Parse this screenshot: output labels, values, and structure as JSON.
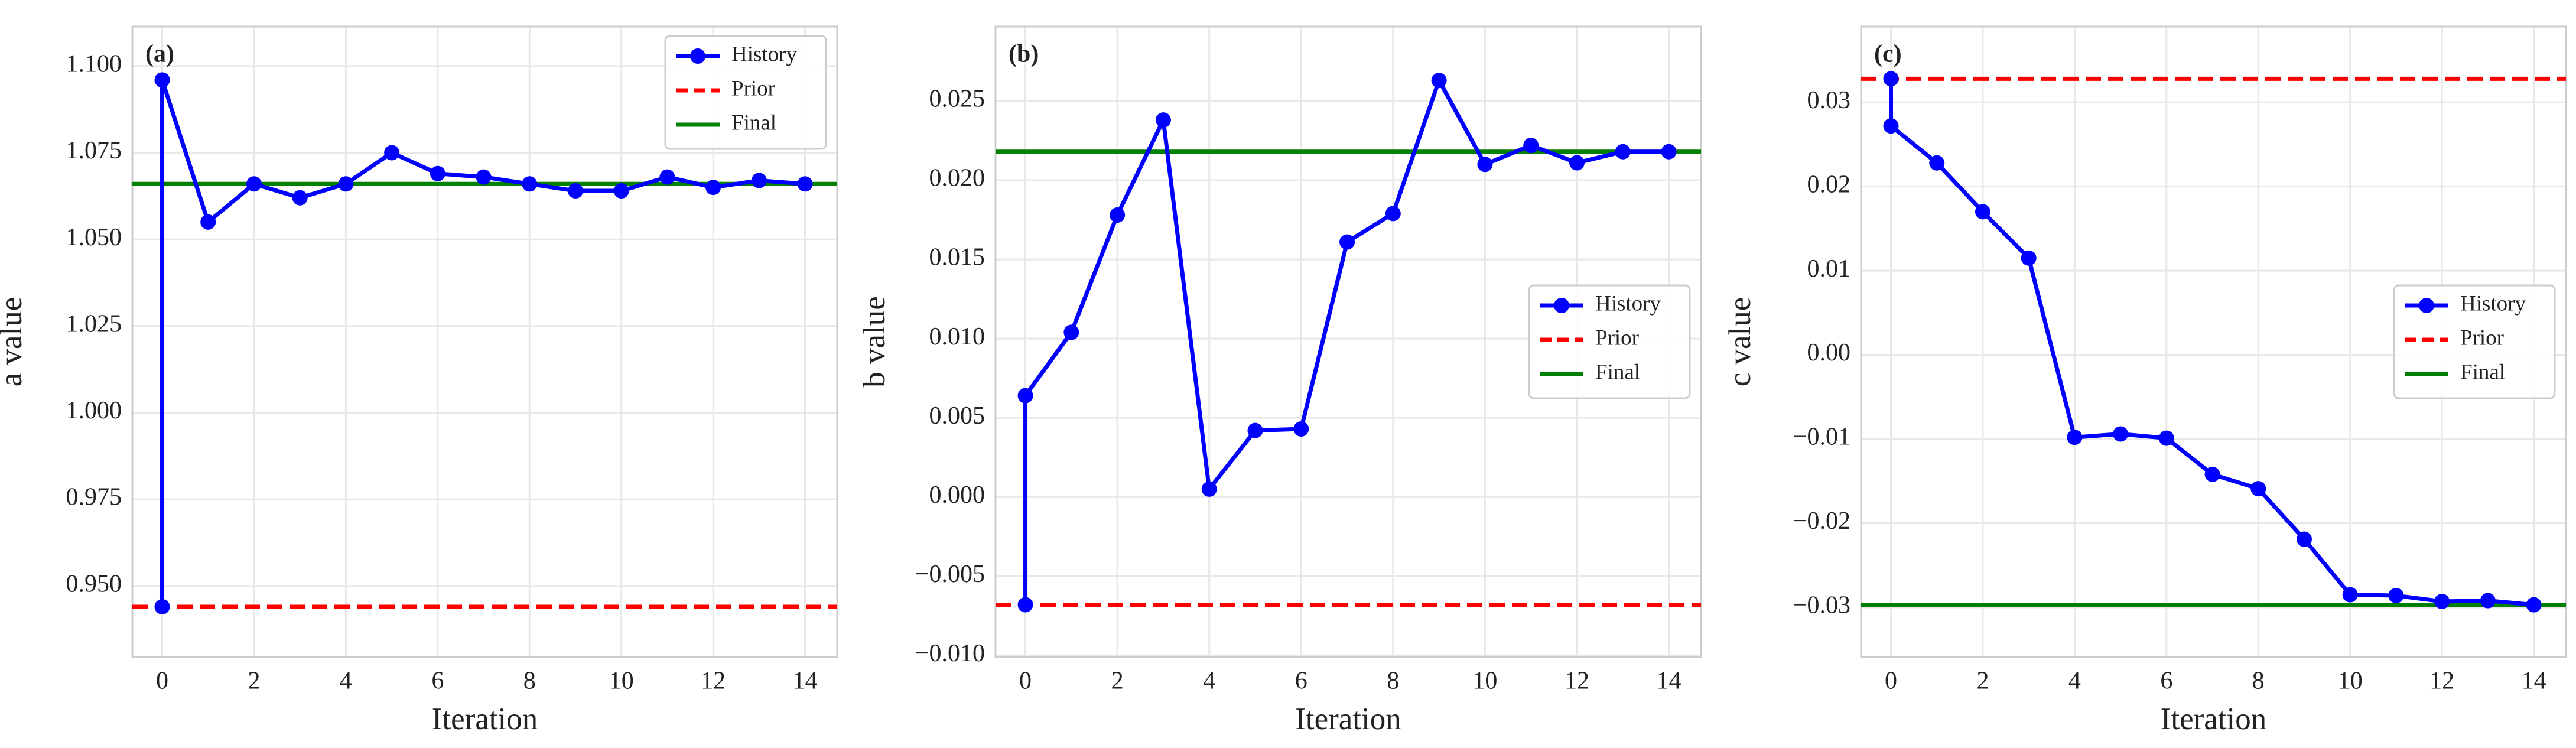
{
  "chart_data": [
    {
      "type": "line",
      "panel_label": "(a)",
      "xlabel": "Iteration",
      "ylabel": "a value",
      "xlim": [
        -0.65,
        14.7
      ],
      "xticks": [
        0,
        2,
        4,
        6,
        8,
        10,
        12,
        14
      ],
      "ylim": [
        0.9295,
        1.1114
      ],
      "yticks": [
        {
          "value": 0.95,
          "label": "0.950"
        },
        0.975,
        {
          "value": 1.0,
          "label": "1.000"
        },
        1.025,
        {
          "value": 1.05,
          "label": "1.050"
        },
        1.075,
        {
          "value": 1.1,
          "label": "1.100"
        }
      ],
      "grid": true,
      "legend": "upper right",
      "series": [
        {
          "name": "History",
          "color": "#0000ff",
          "x": [
            0,
            0,
            1,
            2,
            3,
            4,
            5,
            6,
            7,
            8,
            9,
            10,
            11,
            12,
            13,
            14
          ],
          "values": [
            0.944,
            1.096,
            1.055,
            1.066,
            1.062,
            1.066,
            1.075,
            1.069,
            1.068,
            1.066,
            1.064,
            1.064,
            1.068,
            1.065,
            1.067,
            1.066
          ]
        },
        {
          "name": "Prior",
          "color": "#ff0000",
          "style": "dashed",
          "hline": 0.944
        },
        {
          "name": "Final",
          "color": "#008000",
          "style": "solid",
          "hline": 1.066
        }
      ]
    },
    {
      "type": "line",
      "panel_label": "(b)",
      "xlabel": "Iteration",
      "ylabel": "b value",
      "xlim": [
        -0.65,
        14.7
      ],
      "xticks": [
        0,
        2,
        4,
        6,
        8,
        10,
        12,
        14
      ],
      "ylim": [
        -0.0101,
        0.0297
      ],
      "yticks": [
        {
          "value": -0.01,
          "label": "−0.010"
        },
        {
          "value": -0.005,
          "label": "−0.005"
        },
        {
          "value": 0,
          "label": "0.000"
        },
        0.005,
        {
          "value": 0.01,
          "label": "0.010"
        },
        0.015,
        {
          "value": 0.02,
          "label": "0.020"
        },
        0.025
      ],
      "grid": true,
      "legend": "center right",
      "series": [
        {
          "name": "History",
          "color": "#0000ff",
          "x": [
            0,
            0,
            1,
            2,
            3,
            4,
            5,
            6,
            7,
            8,
            9,
            10,
            11,
            12,
            13,
            14
          ],
          "values": [
            -0.0068,
            0.0064,
            0.0104,
            0.0178,
            0.0238,
            0.0005,
            0.0042,
            0.0043,
            0.0161,
            0.0179,
            0.0263,
            0.021,
            0.0222,
            0.0211,
            0.0218,
            0.0218
          ]
        },
        {
          "name": "Prior",
          "color": "#ff0000",
          "style": "dashed",
          "hline": -0.0068
        },
        {
          "name": "Final",
          "color": "#008000",
          "style": "solid",
          "hline": 0.0218
        }
      ]
    },
    {
      "type": "line",
      "panel_label": "(c)",
      "xlabel": "Iteration",
      "ylabel": "c value",
      "xlim": [
        -0.65,
        14.7
      ],
      "xticks": [
        0,
        2,
        4,
        6,
        8,
        10,
        12,
        14
      ],
      "ylim": [
        -0.0359,
        0.039
      ],
      "yticks": [
        {
          "value": -0.03,
          "label": "−0.03"
        },
        {
          "value": -0.02,
          "label": "−0.02"
        },
        {
          "value": -0.01,
          "label": "−0.01"
        },
        {
          "value": 0,
          "label": "0.00"
        },
        0.01,
        0.02,
        0.03
      ],
      "grid": true,
      "legend": "center right",
      "series": [
        {
          "name": "History",
          "color": "#0000ff",
          "x": [
            0,
            0,
            1,
            2,
            3,
            4,
            5,
            6,
            7,
            8,
            9,
            10,
            11,
            12,
            13,
            14
          ],
          "values": [
            0.0328,
            0.0272,
            0.0228,
            0.017,
            0.0115,
            -0.0098,
            -0.0094,
            -0.0099,
            -0.0142,
            -0.0159,
            -0.0219,
            -0.0285,
            -0.0286,
            -0.0293,
            -0.0292,
            -0.0297
          ]
        },
        {
          "name": "Prior",
          "color": "#ff0000",
          "style": "dashed",
          "hline": 0.0328
        },
        {
          "name": "Final",
          "color": "#008000",
          "style": "solid",
          "hline": -0.0297
        }
      ]
    }
  ]
}
